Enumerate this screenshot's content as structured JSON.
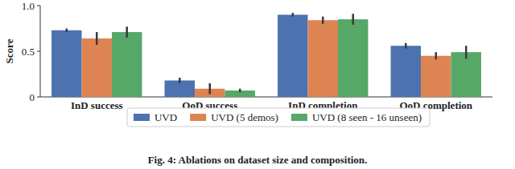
{
  "chart_data": {
    "type": "bar",
    "y_label": "Score",
    "caption": "Fig. 4: Ablations on dataset size and composition.",
    "categories": [
      "InD success",
      "OoD success",
      "InD completion",
      "OoD completion"
    ],
    "series": [
      {
        "name": "UVD",
        "color": "#4c72b0",
        "values": [
          0.73,
          0.18,
          0.9,
          0.56
        ],
        "errors": [
          0.02,
          0.03,
          0.02,
          0.03
        ]
      },
      {
        "name": "UVD (5 demos)",
        "color": "#dd8452",
        "values": [
          0.64,
          0.09,
          0.84,
          0.45
        ],
        "errors": [
          0.07,
          0.06,
          0.04,
          0.04
        ]
      },
      {
        "name": "UVD (8 seen - 16 unseen)",
        "color": "#55a868",
        "values": [
          0.71,
          0.07,
          0.85,
          0.49
        ],
        "errors": [
          0.06,
          0.02,
          0.06,
          0.07
        ]
      }
    ],
    "ylim": [
      0,
      1
    ],
    "yticks": [
      0,
      0.5,
      {
        "value": 1,
        "label": "1.0"
      }
    ],
    "grid": false,
    "legend": "bottom"
  }
}
